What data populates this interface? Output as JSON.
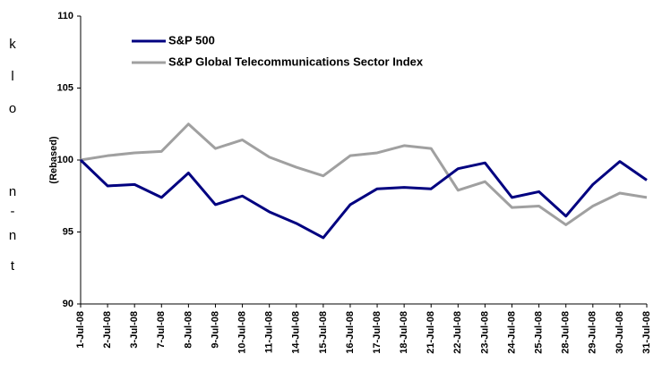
{
  "side_text": [
    "k",
    "l",
    "o",
    "n",
    "-",
    "n",
    "t"
  ],
  "chart_data": {
    "type": "line",
    "y_label": "(Rebased)",
    "categories": [
      "1-Jul-08",
      "2-Jul-08",
      "3-Jul-08",
      "7-Jul-08",
      "8-Jul-08",
      "9-Jul-08",
      "10-Jul-08",
      "11-Jul-08",
      "14-Jul-08",
      "15-Jul-08",
      "16-Jul-08",
      "17-Jul-08",
      "18-Jul-08",
      "21-Jul-08",
      "22-Jul-08",
      "23-Jul-08",
      "24-Jul-08",
      "25-Jul-08",
      "28-Jul-08",
      "29-Jul-08",
      "30-Jul-08",
      "31-Jul-08"
    ],
    "series": [
      {
        "name": "S&P 500",
        "color": "#000080",
        "values": [
          100,
          98.2,
          98.3,
          97.4,
          99.1,
          96.9,
          97.5,
          96.4,
          95.6,
          94.6,
          96.9,
          98.0,
          98.1,
          98.0,
          99.4,
          99.8,
          97.4,
          97.8,
          96.1,
          98.3,
          99.9,
          98.6
        ]
      },
      {
        "name": "S&P Global Telecommunications Sector Index",
        "color": "#a0a0a0",
        "values": [
          100,
          100.3,
          100.5,
          100.6,
          102.5,
          100.8,
          101.4,
          100.2,
          99.5,
          98.9,
          100.3,
          100.5,
          101.0,
          100.8,
          97.9,
          98.5,
          96.7,
          96.8,
          95.5,
          96.8,
          97.7,
          97.4
        ]
      }
    ],
    "ylim": [
      90,
      110
    ],
    "yticks": [
      90,
      95,
      100,
      105,
      110
    ],
    "legend": "upper left",
    "grid": false
  }
}
